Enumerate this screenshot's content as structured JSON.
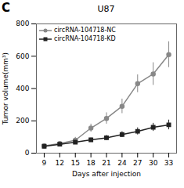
{
  "chart_data": {
    "type": "line",
    "title": "U87",
    "annotations": [
      "C"
    ],
    "xlabel": "Days after injection",
    "ylabel": "Tumor volume(mm³)",
    "x": [
      9,
      12,
      15,
      18,
      21,
      24,
      27,
      30,
      33
    ],
    "series": [
      {
        "name": "circRNA-104718-NC",
        "color": "#888888",
        "marker": "circle",
        "line_style": "solid",
        "values": [
          45,
          60,
          80,
          155,
          215,
          290,
          430,
          490,
          610
        ],
        "errors": [
          8,
          10,
          18,
          25,
          35,
          45,
          55,
          70,
          80
        ]
      },
      {
        "name": "circRNA-104718-KD",
        "color": "#222222",
        "marker": "square",
        "line_style": "solid",
        "values": [
          42,
          55,
          68,
          82,
          95,
          115,
          135,
          160,
          175
        ],
        "errors": [
          6,
          8,
          10,
          12,
          15,
          18,
          22,
          25,
          30
        ]
      }
    ],
    "xlim": [
      7.5,
      34.5
    ],
    "xticks": [
      9,
      12,
      15,
      18,
      21,
      24,
      27,
      30,
      33
    ],
    "ylim": [
      0,
      800
    ],
    "yticks": [
      0,
      200,
      400,
      600,
      800
    ],
    "legend": "upper left",
    "grid": false
  }
}
